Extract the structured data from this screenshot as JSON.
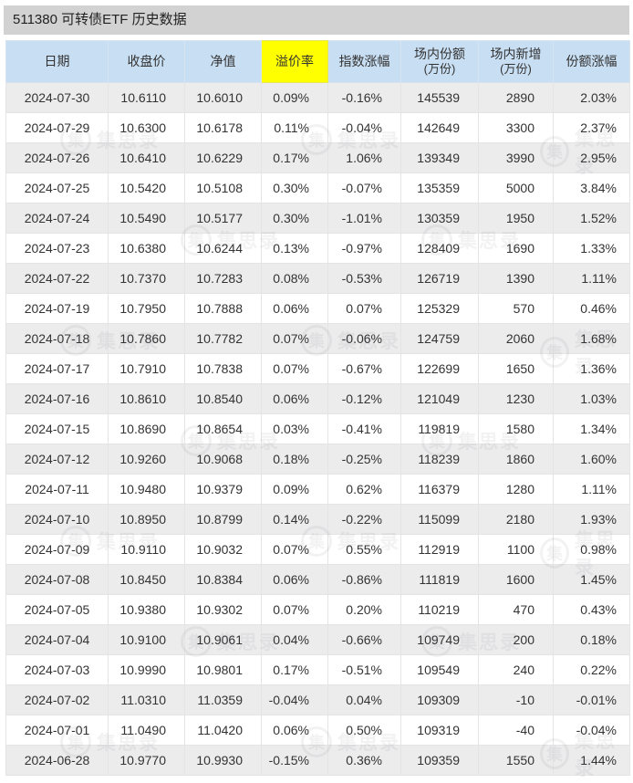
{
  "page": {
    "title": "511380 可转债ETF 历史数据"
  },
  "watermark": {
    "text": "集思录"
  },
  "colors": {
    "title_bar_bg": "#d2d2d2",
    "header_bg": "#c8def2",
    "highlight_bg": "#ffff00",
    "row_alt_bg": "#ececec"
  },
  "table": {
    "col_names": [
      "date",
      "close-price",
      "nav",
      "premium-rate",
      "index-change",
      "shares-outstanding",
      "shares-new",
      "shares-change"
    ],
    "columns": [
      {
        "label": "日期",
        "sub": "",
        "highlight": false
      },
      {
        "label": "收盘价",
        "sub": "",
        "highlight": false
      },
      {
        "label": "净值",
        "sub": "",
        "highlight": false
      },
      {
        "label": "溢价率",
        "sub": "",
        "highlight": true
      },
      {
        "label": "指数涨幅",
        "sub": "",
        "highlight": false
      },
      {
        "label": "场内份额",
        "sub": "(万份)",
        "highlight": false
      },
      {
        "label": "场内新增",
        "sub": "(万份)",
        "highlight": false
      },
      {
        "label": "份额涨幅",
        "sub": "",
        "highlight": false
      }
    ],
    "rows": [
      [
        "2024-07-30",
        "10.6110",
        "10.6010",
        "0.09%",
        "-0.16%",
        "145539",
        "2890",
        "2.03%"
      ],
      [
        "2024-07-29",
        "10.6300",
        "10.6178",
        "0.11%",
        "-0.04%",
        "142649",
        "3300",
        "2.37%"
      ],
      [
        "2024-07-26",
        "10.6410",
        "10.6229",
        "0.17%",
        "1.06%",
        "139349",
        "3990",
        "2.95%"
      ],
      [
        "2024-07-25",
        "10.5420",
        "10.5108",
        "0.30%",
        "-0.07%",
        "135359",
        "5000",
        "3.84%"
      ],
      [
        "2024-07-24",
        "10.5490",
        "10.5177",
        "0.30%",
        "-1.01%",
        "130359",
        "1950",
        "1.52%"
      ],
      [
        "2024-07-23",
        "10.6380",
        "10.6244",
        "0.13%",
        "-0.97%",
        "128409",
        "1690",
        "1.33%"
      ],
      [
        "2024-07-22",
        "10.7370",
        "10.7283",
        "0.08%",
        "-0.53%",
        "126719",
        "1390",
        "1.11%"
      ],
      [
        "2024-07-19",
        "10.7950",
        "10.7888",
        "0.06%",
        "0.07%",
        "125329",
        "570",
        "0.46%"
      ],
      [
        "2024-07-18",
        "10.7860",
        "10.7782",
        "0.07%",
        "-0.06%",
        "124759",
        "2060",
        "1.68%"
      ],
      [
        "2024-07-17",
        "10.7910",
        "10.7838",
        "0.07%",
        "-0.67%",
        "122699",
        "1650",
        "1.36%"
      ],
      [
        "2024-07-16",
        "10.8610",
        "10.8540",
        "0.06%",
        "-0.12%",
        "121049",
        "1230",
        "1.03%"
      ],
      [
        "2024-07-15",
        "10.8690",
        "10.8654",
        "0.03%",
        "-0.41%",
        "119819",
        "1580",
        "1.34%"
      ],
      [
        "2024-07-12",
        "10.9260",
        "10.9068",
        "0.18%",
        "-0.25%",
        "118239",
        "1860",
        "1.60%"
      ],
      [
        "2024-07-11",
        "10.9480",
        "10.9379",
        "0.09%",
        "0.62%",
        "116379",
        "1280",
        "1.11%"
      ],
      [
        "2024-07-10",
        "10.8950",
        "10.8799",
        "0.14%",
        "-0.22%",
        "115099",
        "2180",
        "1.93%"
      ],
      [
        "2024-07-09",
        "10.9110",
        "10.9032",
        "0.07%",
        "0.55%",
        "112919",
        "1100",
        "0.98%"
      ],
      [
        "2024-07-08",
        "10.8450",
        "10.8384",
        "0.06%",
        "-0.86%",
        "111819",
        "1600",
        "1.45%"
      ],
      [
        "2024-07-05",
        "10.9380",
        "10.9302",
        "0.07%",
        "0.20%",
        "110219",
        "470",
        "0.43%"
      ],
      [
        "2024-07-04",
        "10.9100",
        "10.9061",
        "0.04%",
        "-0.66%",
        "109749",
        "200",
        "0.18%"
      ],
      [
        "2024-07-03",
        "10.9990",
        "10.9801",
        "0.17%",
        "-0.51%",
        "109549",
        "240",
        "0.22%"
      ],
      [
        "2024-07-02",
        "11.0310",
        "11.0359",
        "-0.04%",
        "0.04%",
        "109309",
        "-10",
        "-0.01%"
      ],
      [
        "2024-07-01",
        "11.0490",
        "11.0420",
        "0.06%",
        "0.50%",
        "109319",
        "-40",
        "-0.04%"
      ],
      [
        "2024-06-28",
        "10.9770",
        "10.9930",
        "-0.15%",
        "0.36%",
        "109359",
        "1550",
        "1.44%"
      ]
    ]
  }
}
